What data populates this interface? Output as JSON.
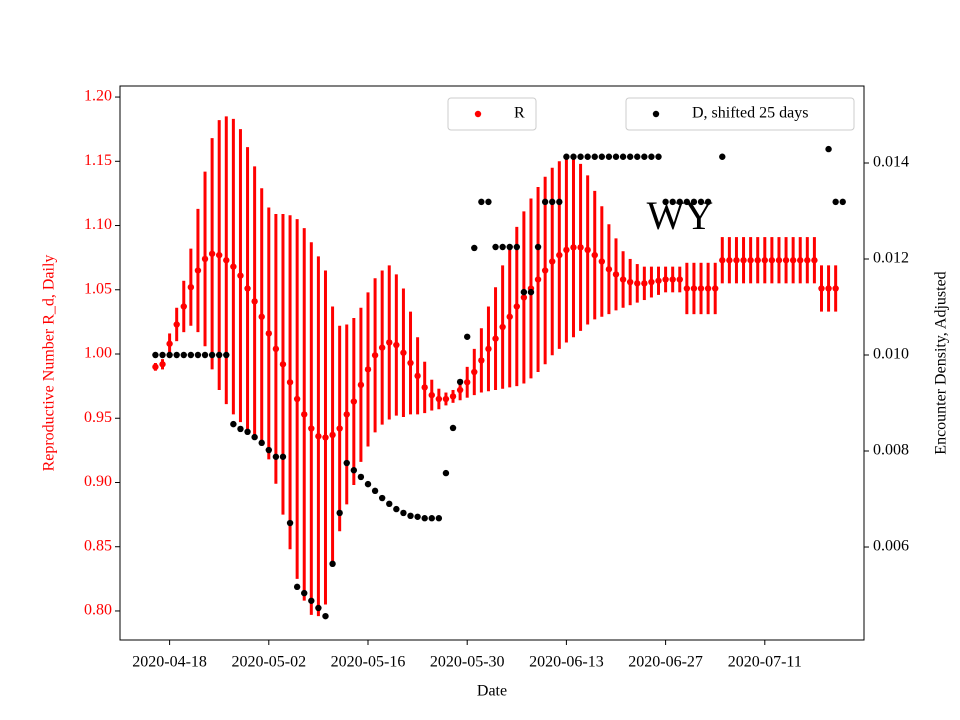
{
  "chart_data": {
    "type": "scatter",
    "xlabel": "Date",
    "ylabel": "Reproductive Number R_d, Daily",
    "y2label": "Encounter Density, Adjusted",
    "annotation": "WY",
    "x": [
      "2020-04-16",
      "2020-04-17",
      "2020-04-18",
      "2020-04-19",
      "2020-04-20",
      "2020-04-21",
      "2020-04-22",
      "2020-04-23",
      "2020-04-24",
      "2020-04-25",
      "2020-04-26",
      "2020-04-27",
      "2020-04-28",
      "2020-04-29",
      "2020-04-30",
      "2020-05-01",
      "2020-05-02",
      "2020-05-03",
      "2020-05-04",
      "2020-05-05",
      "2020-05-06",
      "2020-05-07",
      "2020-05-08",
      "2020-05-09",
      "2020-05-10",
      "2020-05-11",
      "2020-05-12",
      "2020-05-13",
      "2020-05-14",
      "2020-05-15",
      "2020-05-16",
      "2020-05-17",
      "2020-05-18",
      "2020-05-19",
      "2020-05-20",
      "2020-05-21",
      "2020-05-22",
      "2020-05-23",
      "2020-05-24",
      "2020-05-25",
      "2020-05-26",
      "2020-05-27",
      "2020-05-28",
      "2020-05-29",
      "2020-05-30",
      "2020-05-31",
      "2020-06-01",
      "2020-06-02",
      "2020-06-03",
      "2020-06-04",
      "2020-06-05",
      "2020-06-06",
      "2020-06-07",
      "2020-06-08",
      "2020-06-09",
      "2020-06-10",
      "2020-06-11",
      "2020-06-12",
      "2020-06-13",
      "2020-06-14",
      "2020-06-15",
      "2020-06-16",
      "2020-06-17",
      "2020-06-18",
      "2020-06-19",
      "2020-06-20",
      "2020-06-21",
      "2020-06-22",
      "2020-06-23",
      "2020-06-24",
      "2020-06-25",
      "2020-06-26",
      "2020-06-27",
      "2020-06-28",
      "2020-06-29",
      "2020-06-30",
      "2020-07-01",
      "2020-07-02",
      "2020-07-03",
      "2020-07-04",
      "2020-07-05",
      "2020-07-06",
      "2020-07-07",
      "2020-07-08",
      "2020-07-09",
      "2020-07-10",
      "2020-07-11",
      "2020-07-12",
      "2020-07-13",
      "2020-07-14",
      "2020-07-15",
      "2020-07-16",
      "2020-07-17",
      "2020-07-18",
      "2020-07-19",
      "2020-07-20",
      "2020-07-21",
      "2020-07-22"
    ],
    "series": [
      {
        "name": "R",
        "color": "#ff0000",
        "axis": "y",
        "values": [
          0.99,
          0.992,
          1.008,
          1.023,
          1.037,
          1.052,
          1.065,
          1.074,
          1.078,
          1.077,
          1.073,
          1.068,
          1.061,
          1.051,
          1.041,
          1.029,
          1.016,
          1.004,
          0.992,
          0.978,
          0.965,
          0.953,
          0.942,
          0.936,
          0.935,
          0.937,
          0.942,
          0.953,
          0.963,
          0.976,
          0.988,
          0.999,
          1.005,
          1.009,
          1.007,
          1.001,
          0.993,
          0.983,
          0.974,
          0.968,
          0.965,
          0.965,
          0.967,
          0.972,
          0.978,
          0.986,
          0.995,
          1.004,
          1.012,
          1.021,
          1.029,
          1.037,
          1.044,
          1.051,
          1.058,
          1.065,
          1.072,
          1.077,
          1.081,
          1.083,
          1.083,
          1.081,
          1.077,
          1.072,
          1.066,
          1.062,
          1.058,
          1.056,
          1.055,
          1.055,
          1.056,
          1.057,
          1.058,
          1.058,
          1.058,
          1.051,
          1.051,
          1.051,
          1.051,
          1.051,
          1.073,
          1.073,
          1.073,
          1.073,
          1.073,
          1.073,
          1.073,
          1.073,
          1.073,
          1.073,
          1.073,
          1.073,
          1.073,
          1.073,
          1.051,
          1.051,
          1.051,
          null
        ],
        "errors": [
          0.003,
          0.004,
          0.008,
          0.013,
          0.02,
          0.03,
          0.048,
          0.068,
          0.09,
          0.105,
          0.112,
          0.115,
          0.114,
          0.11,
          0.105,
          0.1,
          0.098,
          0.105,
          0.117,
          0.13,
          0.14,
          0.145,
          0.145,
          0.14,
          0.13,
          0.1,
          0.08,
          0.07,
          0.065,
          0.06,
          0.06,
          0.06,
          0.06,
          0.06,
          0.055,
          0.05,
          0.04,
          0.03,
          0.02,
          0.012,
          0.008,
          0.005,
          0.005,
          0.008,
          0.012,
          0.018,
          0.025,
          0.033,
          0.04,
          0.048,
          0.055,
          0.062,
          0.067,
          0.07,
          0.072,
          0.073,
          0.073,
          0.073,
          0.072,
          0.07,
          0.065,
          0.058,
          0.05,
          0.043,
          0.035,
          0.028,
          0.022,
          0.018,
          0.015,
          0.013,
          0.012,
          0.011,
          0.01,
          0.01,
          0.01,
          0.02,
          0.02,
          0.02,
          0.02,
          0.02,
          0.018,
          0.018,
          0.018,
          0.018,
          0.018,
          0.018,
          0.018,
          0.018,
          0.018,
          0.018,
          0.018,
          0.018,
          0.018,
          0.018,
          0.018,
          0.018,
          0.018,
          null
        ]
      },
      {
        "name": "D, shifted 25 days",
        "color": "#000000",
        "axis": "y2",
        "values": [
          0.01,
          0.01,
          0.01,
          0.01,
          0.01,
          0.01,
          0.01,
          0.01,
          0.01,
          0.01,
          0.01,
          0.00856,
          0.00846,
          0.0084,
          0.00829,
          0.00817,
          0.00802,
          0.00788,
          0.00788,
          0.0065,
          0.00517,
          0.00504,
          0.00488,
          0.00473,
          0.00456,
          0.00565,
          0.00671,
          0.00775,
          0.0076,
          0.00746,
          0.00731,
          0.00717,
          0.00702,
          0.0069,
          0.00679,
          0.00671,
          0.00665,
          0.00663,
          0.0066,
          0.0066,
          0.0066,
          0.00754,
          0.00848,
          0.00944,
          0.01038,
          0.01223,
          0.01319,
          0.01319,
          0.01225,
          0.01225,
          0.01225,
          0.01225,
          0.01131,
          0.01131,
          0.01225,
          0.01319,
          0.01319,
          0.01319,
          0.01413,
          0.01413,
          0.01413,
          0.01413,
          0.01413,
          0.01413,
          0.01413,
          0.01413,
          0.01413,
          0.01413,
          0.01413,
          0.01413,
          0.01413,
          0.01413,
          0.01319,
          0.01319,
          0.01319,
          0.01319,
          0.01319,
          0.01319,
          0.01319,
          null,
          0.01413,
          null,
          null,
          null,
          null,
          null,
          null,
          null,
          null,
          null,
          null,
          null,
          null,
          null,
          null,
          0.01429,
          0.01319,
          0.01319
        ]
      }
    ],
    "xlim": [
      "2020-04-11",
      "2020-07-25"
    ],
    "xticks": [
      "2020-04-18",
      "2020-05-02",
      "2020-05-16",
      "2020-05-30",
      "2020-06-13",
      "2020-06-27",
      "2020-07-11"
    ],
    "ylim": [
      0.7774,
      1.2086
    ],
    "yticks": [
      {
        "value": 0.8,
        "label": "0.80"
      },
      0.85,
      {
        "value": 0.9,
        "label": "0.90"
      },
      0.95,
      {
        "value": 1.0,
        "label": "1.00"
      },
      1.05,
      {
        "value": 1.1,
        "label": "1.10"
      },
      1.15,
      {
        "value": 1.2,
        "label": "1.20"
      }
    ],
    "y2lim": [
      0.004063,
      0.015604
    ],
    "y2ticks": [
      0.006,
      0.008,
      {
        "value": 0.01,
        "label": "0.010"
      },
      0.012,
      0.014
    ],
    "ytick_color": "#ff0000"
  }
}
